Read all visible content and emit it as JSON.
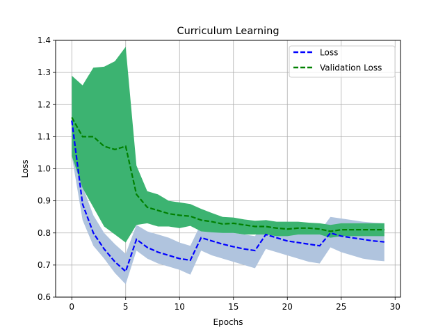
{
  "chart_data": {
    "type": "line",
    "title": "Curriculum Learning",
    "xlabel": "Epochs",
    "ylabel": "Loss",
    "xlim": [
      -1.5,
      30.5
    ],
    "ylim": [
      0.6,
      1.4
    ],
    "xticks": [
      0,
      5,
      10,
      15,
      20,
      25,
      30
    ],
    "yticks": [
      0.6,
      0.7,
      0.8,
      0.9,
      1.0,
      1.1,
      1.2,
      1.3,
      1.4
    ],
    "xtick_labels": [
      "0",
      "5",
      "10",
      "15",
      "20",
      "25",
      "30"
    ],
    "ytick_labels": [
      "0.6",
      "0.7",
      "0.8",
      "0.9",
      "1.0",
      "1.1",
      "1.2",
      "1.3",
      "1.4"
    ],
    "grid": true,
    "legend_position": "top-right",
    "x": [
      0,
      1,
      2,
      3,
      4,
      5,
      6,
      7,
      8,
      9,
      10,
      11,
      12,
      13,
      14,
      15,
      16,
      17,
      18,
      19,
      20,
      21,
      22,
      23,
      24,
      25,
      26,
      27,
      28,
      29
    ],
    "series": [
      {
        "name": "Loss",
        "color": "#0000ff",
        "band_color": "#b0c4de",
        "style": "dashed",
        "values": [
          1.15,
          0.89,
          0.8,
          0.75,
          0.71,
          0.68,
          0.78,
          0.755,
          0.74,
          0.73,
          0.72,
          0.715,
          0.785,
          0.775,
          0.765,
          0.757,
          0.75,
          0.745,
          0.795,
          0.785,
          0.775,
          0.77,
          0.765,
          0.76,
          0.8,
          0.79,
          0.785,
          0.78,
          0.775,
          0.772
        ],
        "lower": [
          1.04,
          0.84,
          0.76,
          0.72,
          0.675,
          0.64,
          0.745,
          0.72,
          0.705,
          0.695,
          0.685,
          0.67,
          0.745,
          0.73,
          0.72,
          0.71,
          0.7,
          0.69,
          0.75,
          0.74,
          0.73,
          0.72,
          0.71,
          0.705,
          0.755,
          0.74,
          0.73,
          0.72,
          0.715,
          0.712
        ],
        "upper": [
          1.2,
          0.945,
          0.855,
          0.8,
          0.765,
          0.735,
          0.825,
          0.805,
          0.795,
          0.785,
          0.77,
          0.76,
          0.83,
          0.82,
          0.81,
          0.8,
          0.795,
          0.79,
          0.84,
          0.83,
          0.82,
          0.815,
          0.81,
          0.805,
          0.85,
          0.845,
          0.84,
          0.835,
          0.832,
          0.83
        ]
      },
      {
        "name": "Validation Loss",
        "color": "#008000",
        "band_color": "#3cb371",
        "style": "dashed",
        "values": [
          1.16,
          1.1,
          1.1,
          1.07,
          1.06,
          1.07,
          0.92,
          0.88,
          0.87,
          0.86,
          0.855,
          0.852,
          0.84,
          0.835,
          0.828,
          0.83,
          0.825,
          0.82,
          0.82,
          0.815,
          0.812,
          0.815,
          0.815,
          0.812,
          0.805,
          0.81,
          0.81,
          0.81,
          0.81,
          0.81
        ],
        "lower": [
          1.04,
          0.94,
          0.88,
          0.82,
          0.795,
          0.77,
          0.825,
          0.83,
          0.82,
          0.82,
          0.815,
          0.822,
          0.805,
          0.802,
          0.8,
          0.8,
          0.795,
          0.795,
          0.795,
          0.79,
          0.79,
          0.795,
          0.795,
          0.795,
          0.785,
          0.79,
          0.79,
          0.79,
          0.79,
          0.79
        ],
        "upper": [
          1.29,
          1.26,
          1.315,
          1.318,
          1.335,
          1.38,
          1.01,
          0.93,
          0.92,
          0.9,
          0.895,
          0.89,
          0.875,
          0.862,
          0.85,
          0.848,
          0.842,
          0.838,
          0.84,
          0.835,
          0.835,
          0.835,
          0.832,
          0.83,
          0.825,
          0.83,
          0.83,
          0.83,
          0.83,
          0.83
        ]
      }
    ]
  }
}
